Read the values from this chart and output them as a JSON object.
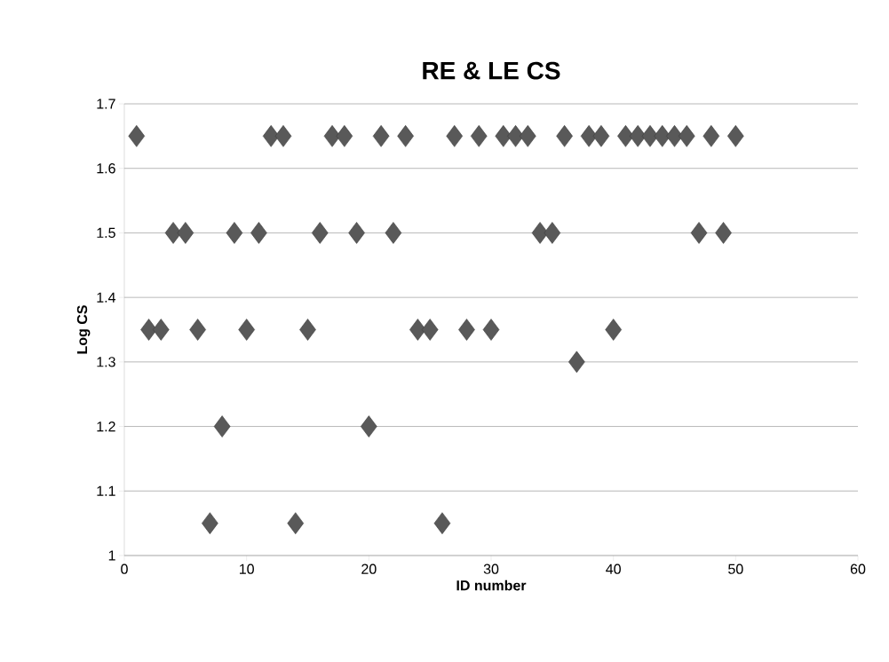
{
  "chart_data": {
    "type": "scatter",
    "title": "RE & LE CS",
    "xlabel": "ID number",
    "ylabel": "Log CS",
    "x": [
      1,
      2,
      3,
      4,
      5,
      6,
      7,
      8,
      9,
      10,
      11,
      12,
      13,
      14,
      15,
      16,
      17,
      18,
      19,
      20,
      21,
      22,
      23,
      24,
      25,
      26,
      27,
      28,
      29,
      30,
      31,
      32,
      33,
      34,
      35,
      36,
      37,
      38,
      39,
      40,
      41,
      42,
      43,
      44,
      45,
      46,
      47,
      48,
      49,
      50
    ],
    "values": [
      1.65,
      1.35,
      1.35,
      1.5,
      1.5,
      1.35,
      1.05,
      1.2,
      1.5,
      1.35,
      1.5,
      1.65,
      1.65,
      1.05,
      1.35,
      1.5,
      1.65,
      1.65,
      1.5,
      1.2,
      1.65,
      1.5,
      1.65,
      1.35,
      1.35,
      1.05,
      1.65,
      1.35,
      1.65,
      1.35,
      1.65,
      1.65,
      1.65,
      1.5,
      1.5,
      1.65,
      1.3,
      1.65,
      1.65,
      1.35,
      1.65,
      1.65,
      1.65,
      1.65,
      1.65,
      1.65,
      1.5,
      1.65,
      1.5,
      1.65
    ],
    "color": "#595959",
    "marker": "diamond",
    "xlim": [
      0,
      60
    ],
    "xticks": [
      0,
      10,
      20,
      30,
      40,
      50,
      60
    ],
    "ylim": [
      1,
      1.7
    ],
    "yticks": [
      1,
      1.1,
      1.2,
      1.3,
      1.4,
      1.5,
      1.6,
      1.7
    ],
    "grid": "y"
  }
}
